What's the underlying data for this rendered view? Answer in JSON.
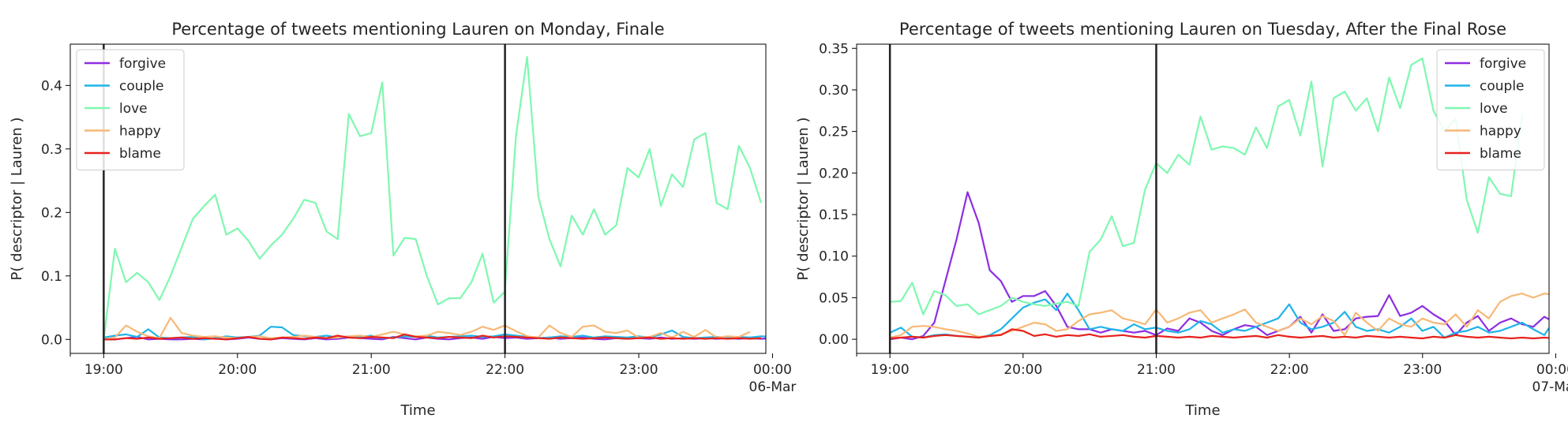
{
  "chart_data": [
    {
      "type": "line",
      "title": "Percentage of tweets mentioning Lauren on Monday, Finale",
      "xlabel": "Time",
      "ylabel": "P( descriptor | Lauren )",
      "xlim": [
        18.75,
        23.95
      ],
      "ylim": [
        -0.022,
        0.465
      ],
      "x_ticks": [
        {
          "value": 19,
          "label": "19:00",
          "sublabel": ""
        },
        {
          "value": 20,
          "label": "20:00",
          "sublabel": ""
        },
        {
          "value": 21,
          "label": "21:00",
          "sublabel": ""
        },
        {
          "value": 22,
          "label": "22:00",
          "sublabel": ""
        },
        {
          "value": 23,
          "label": "23:00",
          "sublabel": ""
        },
        {
          "value": 24,
          "label": "00:00",
          "sublabel": "06-Mar"
        }
      ],
      "y_ticks": [
        {
          "value": 0.0,
          "label": "0.0"
        },
        {
          "value": 0.1,
          "label": "0.1"
        },
        {
          "value": 0.2,
          "label": "0.2"
        },
        {
          "value": 0.3,
          "label": "0.3"
        },
        {
          "value": 0.4,
          "label": "0.4"
        }
      ],
      "vlines": [
        19,
        22
      ],
      "legend_position": "top-left",
      "x_start": 19.0,
      "x_step": 0.0833,
      "series": [
        {
          "name": "forgive",
          "color": "#8e2de2",
          "values": [
            0.0,
            0.0,
            0.002,
            0.004,
            0.0,
            0.001,
            0.0,
            0.0,
            0.001,
            0.0,
            0.002,
            0.0,
            0.001,
            0.003,
            0.001,
            0.0,
            0.002,
            0.001,
            0.0,
            0.002,
            0.0,
            0.001,
            0.003,
            0.002,
            0.001,
            0.0,
            0.004,
            0.002,
            0.0,
            0.003,
            0.001,
            0.0,
            0.002,
            0.003,
            0.001,
            0.004,
            0.002,
            0.003,
            0.001,
            0.002,
            0.003,
            0.001,
            0.002,
            0.003,
            0.001,
            0.0,
            0.002,
            0.001,
            0.002,
            0.001,
            0.003,
            0.001,
            0.002,
            0.001,
            0.002,
            0.001,
            0.002,
            0.001,
            0.002,
            0.001,
            0.002,
            0.001,
            0.002
          ]
        },
        {
          "name": "couple",
          "color": "#1fb4e8",
          "values": [
            0.003,
            0.006,
            0.008,
            0.004,
            0.016,
            0.003,
            0.002,
            0.003,
            0.004,
            0.0,
            0.002,
            0.005,
            0.003,
            0.004,
            0.006,
            0.02,
            0.019,
            0.007,
            0.005,
            0.004,
            0.006,
            0.003,
            0.005,
            0.004,
            0.006,
            0.002,
            0.003,
            0.005,
            0.004,
            0.006,
            0.003,
            0.004,
            0.005,
            0.006,
            0.004,
            0.005,
            0.008,
            0.006,
            0.004,
            0.002,
            0.003,
            0.005,
            0.004,
            0.006,
            0.003,
            0.005,
            0.004,
            0.003,
            0.005,
            0.003,
            0.008,
            0.014,
            0.004,
            0.002,
            0.003,
            0.004,
            0.003,
            0.004,
            0.003,
            0.005,
            0.004,
            0.003,
            0.002
          ]
        },
        {
          "name": "love",
          "color": "#7ff8b0",
          "values": [
            0.0,
            0.143,
            0.09,
            0.105,
            0.09,
            0.062,
            0.1,
            0.145,
            0.19,
            0.21,
            0.228,
            0.165,
            0.175,
            0.155,
            0.127,
            0.148,
            0.165,
            0.19,
            0.22,
            0.215,
            0.17,
            0.158,
            0.355,
            0.32,
            0.325,
            0.405,
            0.132,
            0.16,
            0.158,
            0.1,
            0.055,
            0.065,
            0.065,
            0.09,
            0.135,
            0.058,
            0.075,
            0.32,
            0.445,
            0.225,
            0.158,
            0.115,
            0.195,
            0.165,
            0.205,
            0.165,
            0.18,
            0.27,
            0.255,
            0.3,
            0.21,
            0.26,
            0.24,
            0.315,
            0.325,
            0.215,
            0.205,
            0.305,
            0.27,
            0.215
          ]
        },
        {
          "name": "happy",
          "color": "#f7b877",
          "values": [
            0.0,
            0.003,
            0.022,
            0.012,
            0.005,
            0.002,
            0.034,
            0.01,
            0.006,
            0.004,
            0.005,
            0.003,
            0.002,
            0.004,
            0.005,
            0.002,
            0.003,
            0.004,
            0.006,
            0.004,
            0.002,
            0.003,
            0.005,
            0.006,
            0.004,
            0.008,
            0.012,
            0.008,
            0.005,
            0.006,
            0.012,
            0.01,
            0.007,
            0.012,
            0.02,
            0.015,
            0.022,
            0.013,
            0.005,
            0.003,
            0.022,
            0.01,
            0.004,
            0.02,
            0.022,
            0.012,
            0.01,
            0.014,
            0.003,
            0.004,
            0.01,
            0.003,
            0.012,
            0.004,
            0.015,
            0.003,
            0.005,
            0.004,
            0.012
          ]
        },
        {
          "name": "blame",
          "color": "#e8221c",
          "values": [
            0.0,
            0.0,
            0.002,
            0.001,
            0.003,
            0.001,
            0.002,
            0.003,
            0.001,
            0.002,
            0.001,
            0.0,
            0.002,
            0.004,
            0.001,
            0.0,
            0.003,
            0.002,
            0.001,
            0.003,
            0.002,
            0.006,
            0.003,
            0.002,
            0.004,
            0.003,
            0.002,
            0.008,
            0.004,
            0.003,
            0.002,
            0.004,
            0.003,
            0.002,
            0.006,
            0.003,
            0.005,
            0.004,
            0.003,
            0.002,
            0.001,
            0.003,
            0.002,
            0.001,
            0.002,
            0.003,
            0.002,
            0.001,
            0.002,
            0.003,
            0.001,
            0.002,
            0.001,
            0.002,
            0.001,
            0.002,
            0.001,
            0.002,
            0.001,
            0.002
          ]
        }
      ]
    },
    {
      "type": "line",
      "title": "Percentage of tweets mentioning Lauren on Tuesday, After the Final Rose",
      "xlabel": "Time",
      "ylabel": "P( descriptor | Lauren )",
      "xlim": [
        18.75,
        23.95
      ],
      "ylim": [
        -0.017,
        0.355
      ],
      "x_ticks": [
        {
          "value": 19,
          "label": "19:00",
          "sublabel": ""
        },
        {
          "value": 20,
          "label": "20:00",
          "sublabel": ""
        },
        {
          "value": 21,
          "label": "21:00",
          "sublabel": ""
        },
        {
          "value": 22,
          "label": "22:00",
          "sublabel": ""
        },
        {
          "value": 23,
          "label": "23:00",
          "sublabel": ""
        },
        {
          "value": 24,
          "label": "00:00",
          "sublabel": "07-Mar"
        }
      ],
      "y_ticks": [
        {
          "value": 0.0,
          "label": "0.00"
        },
        {
          "value": 0.05,
          "label": "0.05"
        },
        {
          "value": 0.1,
          "label": "0.10"
        },
        {
          "value": 0.15,
          "label": "0.15"
        },
        {
          "value": 0.2,
          "label": "0.20"
        },
        {
          "value": 0.25,
          "label": "0.25"
        },
        {
          "value": 0.3,
          "label": "0.30"
        },
        {
          "value": 0.35,
          "label": "0.35"
        }
      ],
      "vlines": [
        19,
        21
      ],
      "legend_position": "top-right",
      "x_start": 19.0,
      "x_step": 0.0833,
      "series": [
        {
          "name": "forgive",
          "color": "#8e2de2",
          "values": [
            0.0,
            0.002,
            0.0,
            0.004,
            0.02,
            0.07,
            0.12,
            0.177,
            0.14,
            0.083,
            0.07,
            0.045,
            0.052,
            0.052,
            0.058,
            0.04,
            0.015,
            0.012,
            0.012,
            0.008,
            0.012,
            0.01,
            0.008,
            0.01,
            0.005,
            0.013,
            0.01,
            0.025,
            0.02,
            0.01,
            0.005,
            0.012,
            0.017,
            0.015,
            0.005,
            0.01,
            0.015,
            0.027,
            0.008,
            0.03,
            0.01,
            0.012,
            0.025,
            0.027,
            0.028,
            0.053,
            0.028,
            0.032,
            0.04,
            0.03,
            0.022,
            0.005,
            0.02,
            0.028,
            0.01,
            0.02,
            0.025,
            0.018,
            0.015,
            0.027,
            0.02,
            0.012
          ]
        },
        {
          "name": "couple",
          "color": "#1fb4e8",
          "values": [
            0.008,
            0.014,
            0.003,
            0.002,
            0.005,
            0.006,
            0.004,
            0.003,
            0.002,
            0.005,
            0.012,
            0.025,
            0.038,
            0.044,
            0.048,
            0.035,
            0.055,
            0.035,
            0.012,
            0.015,
            0.012,
            0.01,
            0.018,
            0.012,
            0.014,
            0.01,
            0.008,
            0.012,
            0.022,
            0.018,
            0.008,
            0.012,
            0.01,
            0.015,
            0.02,
            0.025,
            0.042,
            0.02,
            0.012,
            0.015,
            0.02,
            0.033,
            0.015,
            0.01,
            0.012,
            0.008,
            0.015,
            0.025,
            0.01,
            0.015,
            0.002,
            0.008,
            0.01,
            0.015,
            0.008,
            0.01,
            0.015,
            0.02,
            0.012,
            0.005,
            0.025,
            0.002
          ]
        },
        {
          "name": "love",
          "color": "#7ff8b0",
          "values": [
            0.045,
            0.046,
            0.068,
            0.03,
            0.058,
            0.053,
            0.04,
            0.042,
            0.03,
            0.035,
            0.04,
            0.05,
            0.045,
            0.042,
            0.04,
            0.043,
            0.045,
            0.04,
            0.105,
            0.12,
            0.148,
            0.112,
            0.116,
            0.18,
            0.212,
            0.2,
            0.222,
            0.21,
            0.268,
            0.228,
            0.232,
            0.23,
            0.222,
            0.255,
            0.23,
            0.28,
            0.288,
            0.245,
            0.31,
            0.208,
            0.29,
            0.298,
            0.275,
            0.29,
            0.25,
            0.315,
            0.278,
            0.33,
            0.338,
            0.275,
            0.25,
            0.265,
            0.168,
            0.128,
            0.195,
            0.175,
            0.172,
            0.27
          ]
        },
        {
          "name": "happy",
          "color": "#f7b877",
          "values": [
            0.002,
            0.005,
            0.015,
            0.016,
            0.015,
            0.012,
            0.01,
            0.007,
            0.003,
            0.004,
            0.006,
            0.01,
            0.015,
            0.02,
            0.018,
            0.01,
            0.012,
            0.022,
            0.03,
            0.032,
            0.035,
            0.025,
            0.022,
            0.018,
            0.036,
            0.02,
            0.025,
            0.032,
            0.035,
            0.02,
            0.025,
            0.03,
            0.036,
            0.02,
            0.015,
            0.01,
            0.015,
            0.025,
            0.018,
            0.028,
            0.022,
            0.005,
            0.032,
            0.02,
            0.01,
            0.025,
            0.018,
            0.015,
            0.025,
            0.02,
            0.018,
            0.03,
            0.015,
            0.035,
            0.025,
            0.045,
            0.052,
            0.055,
            0.05,
            0.055,
            0.053,
            0.043
          ]
        },
        {
          "name": "blame",
          "color": "#e8221c",
          "values": [
            0.001,
            0.002,
            0.003,
            0.002,
            0.004,
            0.005,
            0.004,
            0.003,
            0.002,
            0.004,
            0.005,
            0.012,
            0.01,
            0.004,
            0.006,
            0.003,
            0.005,
            0.004,
            0.006,
            0.003,
            0.004,
            0.005,
            0.003,
            0.002,
            0.004,
            0.003,
            0.002,
            0.003,
            0.002,
            0.004,
            0.003,
            0.002,
            0.003,
            0.004,
            0.002,
            0.005,
            0.003,
            0.002,
            0.003,
            0.004,
            0.002,
            0.003,
            0.002,
            0.004,
            0.003,
            0.002,
            0.003,
            0.002,
            0.001,
            0.003,
            0.002,
            0.005,
            0.003,
            0.002,
            0.003,
            0.002,
            0.001,
            0.002,
            0.001,
            0.002,
            0.001,
            0.002
          ]
        }
      ]
    }
  ]
}
